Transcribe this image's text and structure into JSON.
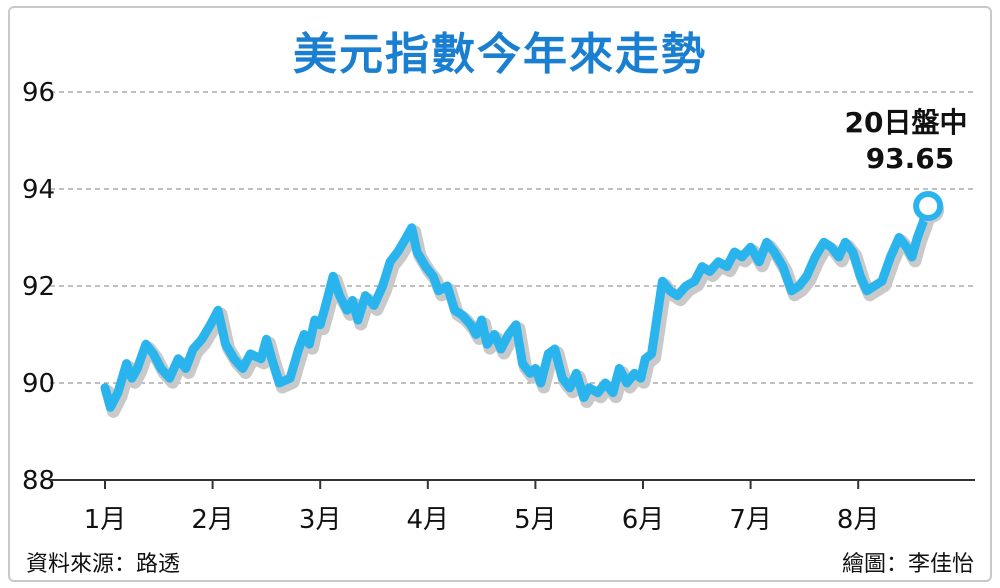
{
  "title": "美元指數今年來走勢",
  "source": "資料來源：路透",
  "credit": "繪圖：李佳怡",
  "colors": {
    "line": "#2ab4ee",
    "title": "#1a7fd0",
    "grid": "#9a9a9a"
  },
  "chart_data": {
    "type": "line",
    "title": "美元指數今年來走勢",
    "xlabel": "",
    "ylabel": "",
    "ylim": [
      88,
      96
    ],
    "yticks": [
      88,
      90,
      92,
      94,
      96
    ],
    "grid": true,
    "x_tick_labels": [
      "1月",
      "2月",
      "3月",
      "4月",
      "5月",
      "6月",
      "7月",
      "8月"
    ],
    "x_tick_positions": [
      0,
      1,
      2,
      3,
      4,
      5,
      6,
      7
    ],
    "annotation": {
      "label": "20日盤中",
      "value": "93.65",
      "x": 7.65,
      "y": 93.65
    },
    "series": [
      {
        "values": [
          [
            0.0,
            89.9
          ],
          [
            0.05,
            89.5
          ],
          [
            0.12,
            89.8
          ],
          [
            0.2,
            90.4
          ],
          [
            0.25,
            90.1
          ],
          [
            0.3,
            90.3
          ],
          [
            0.38,
            90.8
          ],
          [
            0.45,
            90.6
          ],
          [
            0.52,
            90.3
          ],
          [
            0.6,
            90.1
          ],
          [
            0.68,
            90.5
          ],
          [
            0.75,
            90.3
          ],
          [
            0.82,
            90.7
          ],
          [
            0.9,
            90.9
          ],
          [
            0.98,
            91.2
          ],
          [
            1.05,
            91.5
          ],
          [
            1.12,
            90.8
          ],
          [
            1.2,
            90.5
          ],
          [
            1.28,
            90.3
          ],
          [
            1.35,
            90.6
          ],
          [
            1.45,
            90.5
          ],
          [
            1.5,
            90.9
          ],
          [
            1.55,
            90.5
          ],
          [
            1.62,
            90.0
          ],
          [
            1.72,
            90.1
          ],
          [
            1.8,
            90.7
          ],
          [
            1.85,
            91.0
          ],
          [
            1.9,
            90.8
          ],
          [
            1.95,
            91.3
          ],
          [
            2.0,
            91.2
          ],
          [
            2.05,
            91.6
          ],
          [
            2.12,
            92.2
          ],
          [
            2.18,
            91.8
          ],
          [
            2.25,
            91.5
          ],
          [
            2.3,
            91.7
          ],
          [
            2.35,
            91.3
          ],
          [
            2.42,
            91.8
          ],
          [
            2.5,
            91.6
          ],
          [
            2.58,
            92.0
          ],
          [
            2.65,
            92.5
          ],
          [
            2.72,
            92.7
          ],
          [
            2.8,
            93.0
          ],
          [
            2.85,
            93.2
          ],
          [
            2.9,
            92.7
          ],
          [
            2.98,
            92.4
          ],
          [
            3.05,
            92.2
          ],
          [
            3.1,
            91.9
          ],
          [
            3.18,
            92.0
          ],
          [
            3.25,
            91.5
          ],
          [
            3.32,
            91.4
          ],
          [
            3.4,
            91.2
          ],
          [
            3.45,
            91.0
          ],
          [
            3.5,
            91.3
          ],
          [
            3.55,
            90.8
          ],
          [
            3.62,
            91.0
          ],
          [
            3.68,
            90.7
          ],
          [
            3.75,
            91.0
          ],
          [
            3.82,
            91.2
          ],
          [
            3.88,
            90.4
          ],
          [
            3.95,
            90.2
          ],
          [
            4.0,
            90.3
          ],
          [
            4.05,
            90.0
          ],
          [
            4.12,
            90.6
          ],
          [
            4.18,
            90.7
          ],
          [
            4.25,
            90.1
          ],
          [
            4.32,
            89.9
          ],
          [
            4.38,
            90.2
          ],
          [
            4.45,
            89.7
          ],
          [
            4.5,
            89.9
          ],
          [
            4.58,
            89.8
          ],
          [
            4.65,
            90.0
          ],
          [
            4.72,
            89.8
          ],
          [
            4.78,
            90.3
          ],
          [
            4.85,
            90.0
          ],
          [
            4.92,
            90.2
          ],
          [
            4.98,
            90.1
          ],
          [
            5.02,
            90.5
          ],
          [
            5.08,
            90.6
          ],
          [
            5.12,
            91.2
          ],
          [
            5.18,
            92.1
          ],
          [
            5.25,
            91.9
          ],
          [
            5.32,
            91.8
          ],
          [
            5.4,
            92.0
          ],
          [
            5.48,
            92.1
          ],
          [
            5.55,
            92.4
          ],
          [
            5.62,
            92.3
          ],
          [
            5.7,
            92.5
          ],
          [
            5.78,
            92.4
          ],
          [
            5.85,
            92.7
          ],
          [
            5.92,
            92.6
          ],
          [
            6.0,
            92.8
          ],
          [
            6.08,
            92.5
          ],
          [
            6.15,
            92.9
          ],
          [
            6.22,
            92.7
          ],
          [
            6.3,
            92.4
          ],
          [
            6.38,
            91.9
          ],
          [
            6.45,
            92.0
          ],
          [
            6.52,
            92.2
          ],
          [
            6.6,
            92.6
          ],
          [
            6.68,
            92.9
          ],
          [
            6.75,
            92.8
          ],
          [
            6.82,
            92.6
          ],
          [
            6.88,
            92.9
          ],
          [
            6.95,
            92.7
          ],
          [
            7.02,
            92.2
          ],
          [
            7.08,
            91.9
          ],
          [
            7.15,
            92.0
          ],
          [
            7.22,
            92.1
          ],
          [
            7.3,
            92.6
          ],
          [
            7.38,
            93.0
          ],
          [
            7.45,
            92.8
          ],
          [
            7.5,
            92.6
          ],
          [
            7.55,
            93.0
          ],
          [
            7.6,
            93.3
          ],
          [
            7.65,
            93.65
          ]
        ]
      }
    ]
  }
}
